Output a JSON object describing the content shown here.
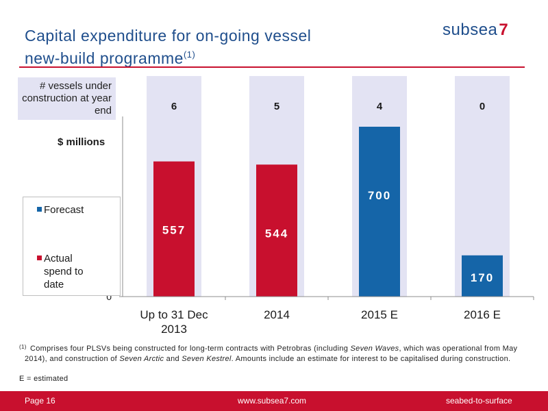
{
  "header": {
    "title_line1": "Capital expenditure for on-going vessel",
    "title_line2": "new-build programme",
    "title_sup": "(1)",
    "logo_word": "subsea",
    "logo_number": "7"
  },
  "labels": {
    "vessels_box": "# vessels under construction at year end",
    "units": "$ millions"
  },
  "chart_data": {
    "type": "bar",
    "categories": [
      "Up to 31 Dec 2013",
      "2014",
      "2015 E",
      "2016 E"
    ],
    "values": [
      557,
      544,
      700,
      170
    ],
    "value_status": [
      "Actual spend to date",
      "Actual spend to date",
      "Forecast",
      "Forecast"
    ],
    "vessel_counts": [
      6,
      5,
      4,
      0
    ],
    "ylabel": "$ millions",
    "y_tick_labels": [
      "0"
    ],
    "ylim": [
      0,
      700
    ],
    "legend": [
      {
        "name": "Forecast",
        "color": "#1565a8"
      },
      {
        "name": "Actual spend to date",
        "color": "#c8102e"
      }
    ],
    "legend_placement": "left",
    "grid": false,
    "colors": {
      "actual": "#c8102e",
      "forecast": "#1565a8",
      "column_band": "#e3e3f3"
    }
  },
  "footnote": {
    "index": "(1)",
    "text_1": "Comprises four PLSVs being constructed for long-term contracts with Petrobras (including ",
    "em_1": "Seven Waves",
    "text_2": ", which was operational from May 2014), and construction of ",
    "em_2": "Seven Arctic",
    "text_3": " and ",
    "em_3": "Seven Kestrel",
    "text_4": ".  Amounts include an estimate for interest to be capitalised during construction.",
    "estimated": "E = estimated"
  },
  "footer": {
    "page": "Page  16",
    "url": "www.subsea7.com",
    "tagline": "seabed-to-surface"
  }
}
